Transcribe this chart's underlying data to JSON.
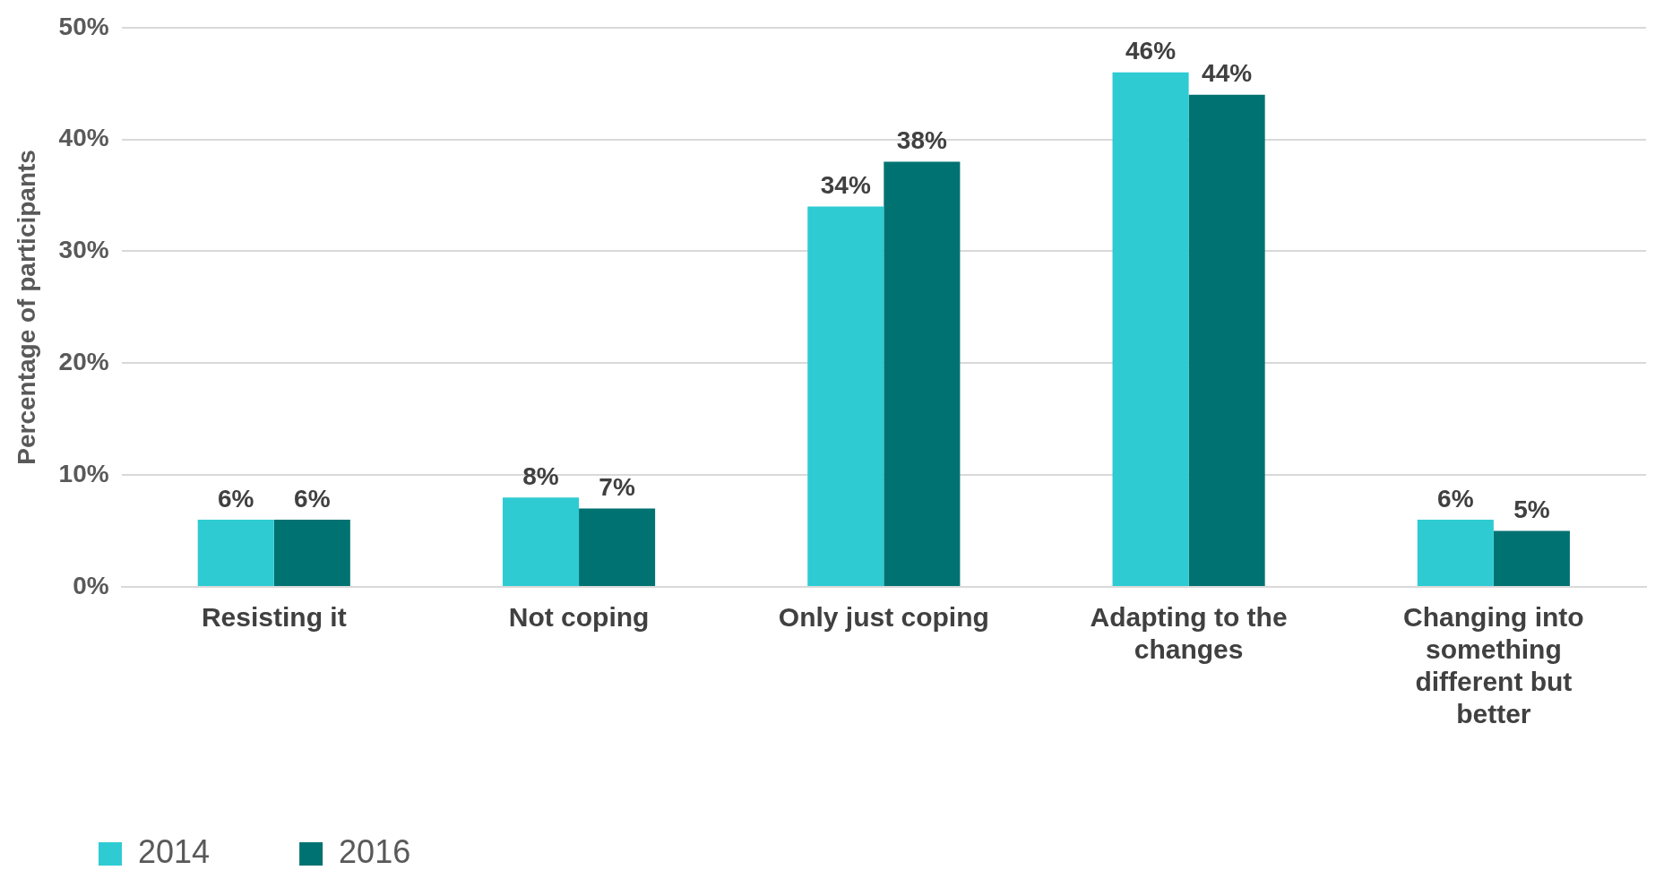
{
  "chart_data": {
    "type": "bar",
    "ylabel": "Percentage of participants",
    "categories": [
      "Resisting it",
      "Not coping",
      "Only just coping",
      "Adapting to the changes",
      "Changing into something different but better"
    ],
    "series": [
      {
        "name": "2014",
        "color": "#2ecbd3",
        "values": [
          6,
          8,
          34,
          46,
          6
        ],
        "value_labels": [
          "6%",
          "8%",
          "34%",
          "46%",
          "6%"
        ]
      },
      {
        "name": "2016",
        "color": "#007272",
        "values": [
          6,
          7,
          38,
          44,
          5
        ],
        "value_labels": [
          "6%",
          "7%",
          "38%",
          "44%",
          "5%"
        ]
      }
    ],
    "ylim": [
      0,
      50
    ],
    "yticks": [
      {
        "value": 0,
        "label": "0%"
      },
      {
        "value": 10,
        "label": "10%"
      },
      {
        "value": 20,
        "label": "20%"
      },
      {
        "value": 30,
        "label": "30%"
      },
      {
        "value": 40,
        "label": "40%"
      },
      {
        "value": 50,
        "label": "50%"
      }
    ],
    "grid": "y",
    "legend": "bottom left"
  }
}
